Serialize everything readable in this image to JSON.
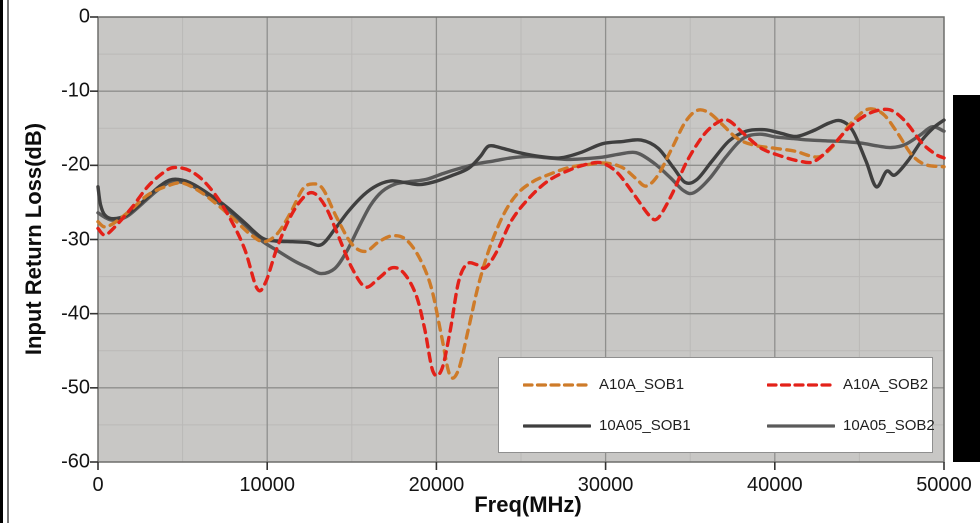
{
  "page": {
    "background": "#ffffff",
    "left_bar_color": "#000000",
    "right_bar_color": "#000000"
  },
  "chart_data": {
    "type": "line",
    "title": "",
    "xlabel": "Freq(MHz)",
    "ylabel": "Input Return Loss(dB)",
    "xlim": [
      0,
      50000
    ],
    "ylim": [
      -60,
      0
    ],
    "x_major_ticks": [
      0,
      10000,
      20000,
      30000,
      40000,
      50000
    ],
    "y_major_ticks": [
      0,
      -10,
      -20,
      -30,
      -40,
      -50,
      -60
    ],
    "x_minor_step": 5000,
    "y_minor_step": 5,
    "grid": true,
    "legend_position": "inside-bottom-right",
    "colors": {
      "plot_bg": "#c8c7c5",
      "major_grid": "#8f8f8d",
      "minor_grid": "#bab9b7",
      "border": "#6e6e6c",
      "tick": "#333333",
      "text": "#141414"
    },
    "series": [
      {
        "name": "A10A_SOB1",
        "color": "#ce7b29",
        "style": "dashed",
        "points": [
          [
            0,
            -27.6
          ],
          [
            400,
            -28.3
          ],
          [
            1000,
            -27.7
          ],
          [
            2000,
            -25.9
          ],
          [
            3000,
            -23.9
          ],
          [
            4200,
            -22.7
          ],
          [
            5000,
            -22.4
          ],
          [
            6000,
            -23.5
          ],
          [
            7000,
            -25.2
          ],
          [
            8000,
            -27.2
          ],
          [
            9000,
            -29.3
          ],
          [
            9800,
            -30.3
          ],
          [
            10600,
            -29.2
          ],
          [
            11400,
            -26.3
          ],
          [
            12100,
            -23.2
          ],
          [
            12700,
            -22.5
          ],
          [
            13300,
            -23.2
          ],
          [
            14100,
            -27.0
          ],
          [
            15000,
            -30.6
          ],
          [
            15800,
            -31.6
          ],
          [
            16600,
            -30.3
          ],
          [
            17400,
            -29.5
          ],
          [
            18200,
            -30.0
          ],
          [
            19000,
            -32.5
          ],
          [
            19700,
            -36.5
          ],
          [
            20300,
            -43.0
          ],
          [
            20800,
            -48.3
          ],
          [
            21300,
            -47.6
          ],
          [
            21900,
            -42.0
          ],
          [
            22500,
            -36.0
          ],
          [
            23200,
            -30.8
          ],
          [
            24000,
            -26.5
          ],
          [
            24800,
            -23.8
          ],
          [
            25700,
            -22.2
          ],
          [
            26700,
            -21.2
          ],
          [
            27800,
            -20.3
          ],
          [
            28900,
            -19.9
          ],
          [
            30000,
            -19.7
          ],
          [
            31000,
            -20.3
          ],
          [
            31800,
            -21.8
          ],
          [
            32400,
            -22.8
          ],
          [
            33100,
            -21.3
          ],
          [
            33900,
            -17.8
          ],
          [
            34700,
            -14.2
          ],
          [
            35400,
            -12.6
          ],
          [
            36100,
            -12.9
          ],
          [
            36900,
            -14.5
          ],
          [
            37800,
            -16.4
          ],
          [
            38800,
            -17.3
          ],
          [
            40000,
            -17.7
          ],
          [
            41200,
            -18.1
          ],
          [
            42200,
            -18.8
          ],
          [
            42800,
            -18.7
          ],
          [
            43600,
            -17.0
          ],
          [
            44400,
            -14.6
          ],
          [
            45200,
            -12.8
          ],
          [
            45800,
            -12.4
          ],
          [
            46500,
            -13.3
          ],
          [
            47300,
            -15.8
          ],
          [
            48100,
            -18.6
          ],
          [
            48900,
            -19.9
          ],
          [
            50000,
            -20.2
          ]
        ]
      },
      {
        "name": "A10A_SOB2",
        "color": "#e32119",
        "style": "dashed",
        "points": [
          [
            0,
            -28.5
          ],
          [
            400,
            -29.4
          ],
          [
            1000,
            -28.3
          ],
          [
            2000,
            -25.7
          ],
          [
            3000,
            -22.7
          ],
          [
            4100,
            -20.6
          ],
          [
            4700,
            -20.3
          ],
          [
            5400,
            -20.7
          ],
          [
            6200,
            -22.0
          ],
          [
            7100,
            -24.5
          ],
          [
            8000,
            -28.0
          ],
          [
            8700,
            -31.5
          ],
          [
            9400,
            -36.6
          ],
          [
            9900,
            -35.8
          ],
          [
            10600,
            -31.0
          ],
          [
            11400,
            -26.8
          ],
          [
            12200,
            -24.2
          ],
          [
            12800,
            -23.8
          ],
          [
            13500,
            -25.8
          ],
          [
            14200,
            -29.5
          ],
          [
            15000,
            -33.8
          ],
          [
            15800,
            -36.4
          ],
          [
            16600,
            -35.2
          ],
          [
            17400,
            -33.8
          ],
          [
            18100,
            -34.6
          ],
          [
            18800,
            -37.5
          ],
          [
            19300,
            -42.0
          ],
          [
            19800,
            -47.8
          ],
          [
            20300,
            -47.6
          ],
          [
            20800,
            -42.5
          ],
          [
            21300,
            -35.8
          ],
          [
            21800,
            -33.3
          ],
          [
            22400,
            -33.4
          ],
          [
            22900,
            -33.8
          ],
          [
            23600,
            -31.5
          ],
          [
            24400,
            -27.6
          ],
          [
            25400,
            -24.6
          ],
          [
            26600,
            -22.1
          ],
          [
            27900,
            -20.6
          ],
          [
            29000,
            -19.8
          ],
          [
            29800,
            -19.7
          ],
          [
            30700,
            -21.0
          ],
          [
            31700,
            -24.0
          ],
          [
            32600,
            -26.8
          ],
          [
            33100,
            -27.1
          ],
          [
            33900,
            -24.0
          ],
          [
            34800,
            -19.5
          ],
          [
            35800,
            -15.9
          ],
          [
            36700,
            -14.1
          ],
          [
            37300,
            -14.0
          ],
          [
            38200,
            -15.8
          ],
          [
            39200,
            -17.7
          ],
          [
            40300,
            -18.7
          ],
          [
            41400,
            -19.4
          ],
          [
            42300,
            -19.5
          ],
          [
            43300,
            -17.6
          ],
          [
            44400,
            -14.9
          ],
          [
            45400,
            -13.2
          ],
          [
            46300,
            -12.5
          ],
          [
            47000,
            -12.7
          ],
          [
            47800,
            -14.3
          ],
          [
            48700,
            -17.0
          ],
          [
            49500,
            -18.5
          ],
          [
            50000,
            -19.0
          ]
        ]
      },
      {
        "name": "10A05_SOB1",
        "color": "#3f3f3f",
        "style": "solid",
        "points": [
          [
            0,
            -22.9
          ],
          [
            150,
            -25.3
          ],
          [
            400,
            -26.7
          ],
          [
            900,
            -27.2
          ],
          [
            1700,
            -26.7
          ],
          [
            2600,
            -25.0
          ],
          [
            3600,
            -22.9
          ],
          [
            4400,
            -21.9
          ],
          [
            5400,
            -22.3
          ],
          [
            6500,
            -23.8
          ],
          [
            7600,
            -25.6
          ],
          [
            8700,
            -27.8
          ],
          [
            9700,
            -29.8
          ],
          [
            10500,
            -30.2
          ],
          [
            11500,
            -30.3
          ],
          [
            12400,
            -30.4
          ],
          [
            13200,
            -30.7
          ],
          [
            14000,
            -28.6
          ],
          [
            14800,
            -26.2
          ],
          [
            15700,
            -24.0
          ],
          [
            16500,
            -22.7
          ],
          [
            17300,
            -22.1
          ],
          [
            18100,
            -22.3
          ],
          [
            19000,
            -22.6
          ],
          [
            19900,
            -22.2
          ],
          [
            20900,
            -21.4
          ],
          [
            21900,
            -20.4
          ],
          [
            22600,
            -18.8
          ],
          [
            23100,
            -17.4
          ],
          [
            23900,
            -17.7
          ],
          [
            24900,
            -18.3
          ],
          [
            26100,
            -18.8
          ],
          [
            27300,
            -19.0
          ],
          [
            28500,
            -18.3
          ],
          [
            29800,
            -17.1
          ],
          [
            31000,
            -16.8
          ],
          [
            32100,
            -16.6
          ],
          [
            33100,
            -17.7
          ],
          [
            34000,
            -20.3
          ],
          [
            34700,
            -22.3
          ],
          [
            35400,
            -21.9
          ],
          [
            36300,
            -19.4
          ],
          [
            37300,
            -16.7
          ],
          [
            38300,
            -15.4
          ],
          [
            39400,
            -15.2
          ],
          [
            40400,
            -15.7
          ],
          [
            41300,
            -16.1
          ],
          [
            42300,
            -15.3
          ],
          [
            43200,
            -14.3
          ],
          [
            43900,
            -14.0
          ],
          [
            44600,
            -15.3
          ],
          [
            45400,
            -19.5
          ],
          [
            46000,
            -22.9
          ],
          [
            46600,
            -20.8
          ],
          [
            47100,
            -21.3
          ],
          [
            47900,
            -19.3
          ],
          [
            48700,
            -16.6
          ],
          [
            49400,
            -14.9
          ],
          [
            50000,
            -13.9
          ]
        ]
      },
      {
        "name": "10A05_SOB2",
        "color": "#5a5a5a",
        "style": "solid",
        "points": [
          [
            0,
            -26.4
          ],
          [
            400,
            -27.0
          ],
          [
            900,
            -27.4
          ],
          [
            1700,
            -26.9
          ],
          [
            2600,
            -25.2
          ],
          [
            3600,
            -23.2
          ],
          [
            4400,
            -22.2
          ],
          [
            5400,
            -22.6
          ],
          [
            6500,
            -24.1
          ],
          [
            7600,
            -25.9
          ],
          [
            8700,
            -28.1
          ],
          [
            9700,
            -30.2
          ],
          [
            10600,
            -31.5
          ],
          [
            11600,
            -32.9
          ],
          [
            12500,
            -33.9
          ],
          [
            13200,
            -34.6
          ],
          [
            14000,
            -33.9
          ],
          [
            14700,
            -31.6
          ],
          [
            15400,
            -28.4
          ],
          [
            16100,
            -25.4
          ],
          [
            16800,
            -23.5
          ],
          [
            17600,
            -22.5
          ],
          [
            18400,
            -22.2
          ],
          [
            19400,
            -21.9
          ],
          [
            20400,
            -21.1
          ],
          [
            21400,
            -20.4
          ],
          [
            22400,
            -19.8
          ],
          [
            23400,
            -19.4
          ],
          [
            24400,
            -19.0
          ],
          [
            25500,
            -18.8
          ],
          [
            26600,
            -19.0
          ],
          [
            27700,
            -19.2
          ],
          [
            28800,
            -19.1
          ],
          [
            29800,
            -18.9
          ],
          [
            30800,
            -18.5
          ],
          [
            31800,
            -18.3
          ],
          [
            32800,
            -19.6
          ],
          [
            33800,
            -21.6
          ],
          [
            34600,
            -23.4
          ],
          [
            35200,
            -23.7
          ],
          [
            36100,
            -21.9
          ],
          [
            37100,
            -18.9
          ],
          [
            38100,
            -16.4
          ],
          [
            39100,
            -15.8
          ],
          [
            40100,
            -16.2
          ],
          [
            41100,
            -16.4
          ],
          [
            42100,
            -16.6
          ],
          [
            43100,
            -16.7
          ],
          [
            44100,
            -16.8
          ],
          [
            45100,
            -17.0
          ],
          [
            46100,
            -17.4
          ],
          [
            46900,
            -17.6
          ],
          [
            47700,
            -17.2
          ],
          [
            48600,
            -15.9
          ],
          [
            49300,
            -14.8
          ],
          [
            50000,
            -15.4
          ]
        ]
      }
    ]
  }
}
